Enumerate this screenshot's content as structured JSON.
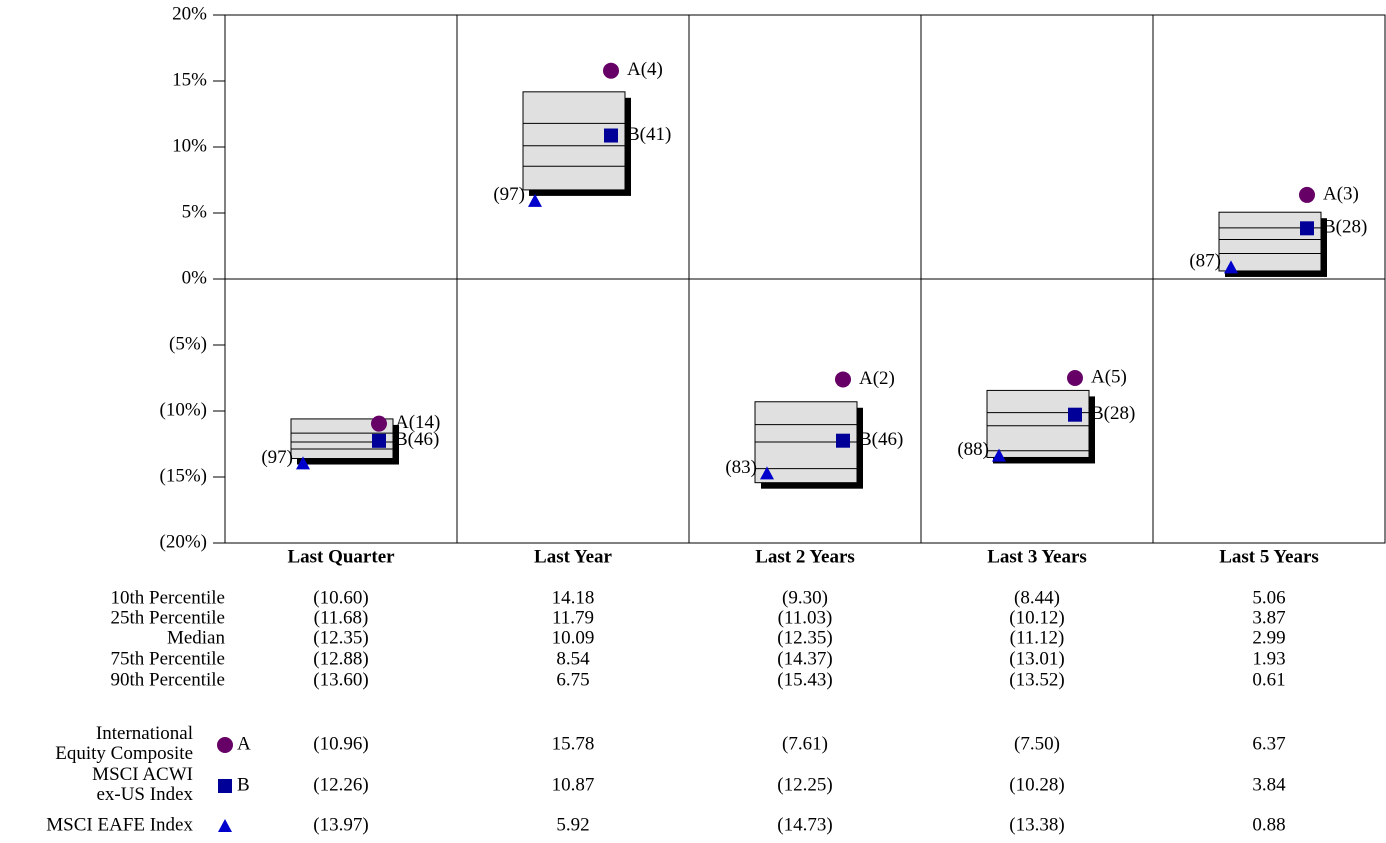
{
  "chart_data": {
    "type": "percentile-box",
    "categories": [
      "Last Quarter",
      "Last Year",
      "Last 2 Years",
      "Last 3 Years",
      "Last 5 Years"
    ],
    "ylim": [
      -20,
      20
    ],
    "yticks": [
      {
        "value": 20,
        "label": "20%"
      },
      {
        "value": 15,
        "label": "15%"
      },
      {
        "value": 10,
        "label": "10%"
      },
      {
        "value": 5,
        "label": "5%"
      },
      {
        "value": 0,
        "label": "0%"
      },
      {
        "value": -5,
        "label": "(5%)"
      },
      {
        "value": -10,
        "label": "(10%)"
      },
      {
        "value": -15,
        "label": "(15%)"
      },
      {
        "value": -20,
        "label": "(20%)"
      }
    ],
    "grid": true,
    "negative_color": "#ff0000",
    "box_color": "#e0e0e0",
    "percentile_rows": [
      {
        "name": "10th Percentile",
        "values": [
          -10.6,
          14.18,
          -9.3,
          -8.44,
          5.06
        ],
        "value_labels": [
          "(10.60)",
          "14.18",
          "(9.30)",
          "(8.44)",
          "5.06"
        ]
      },
      {
        "name": "25th Percentile",
        "values": [
          -11.68,
          11.79,
          -11.03,
          -10.12,
          3.87
        ],
        "value_labels": [
          "(11.68)",
          "11.79",
          "(11.03)",
          "(10.12)",
          "3.87"
        ]
      },
      {
        "name": "Median",
        "values": [
          -12.35,
          10.09,
          -12.35,
          -11.12,
          2.99
        ],
        "value_labels": [
          "(12.35)",
          "10.09",
          "(12.35)",
          "(11.12)",
          "2.99"
        ]
      },
      {
        "name": "75th Percentile",
        "values": [
          -12.88,
          8.54,
          -14.37,
          -13.01,
          1.93
        ],
        "value_labels": [
          "(12.88)",
          "8.54",
          "(14.37)",
          "(13.01)",
          "1.93"
        ]
      },
      {
        "name": "90th Percentile",
        "values": [
          -13.6,
          6.75,
          -15.43,
          -13.52,
          0.61
        ],
        "value_labels": [
          "(13.60)",
          "6.75",
          "(15.43)",
          "(13.52)",
          "0.61"
        ]
      }
    ],
    "series": [
      {
        "name": "International\nEquity Composite",
        "marker_label": "A",
        "shape": "circle",
        "color": "#660066",
        "values": [
          -10.96,
          15.78,
          -7.61,
          -7.5,
          6.37
        ],
        "value_labels": [
          "(10.96)",
          "15.78",
          "(7.61)",
          "(7.50)",
          "6.37"
        ],
        "rank_labels": [
          "A(14)",
          "A(4)",
          "A(2)",
          "A(5)",
          "A(3)"
        ]
      },
      {
        "name": "MSCI ACWI\nex-US Index",
        "marker_label": "B",
        "shape": "square",
        "color": "#000099",
        "values": [
          -12.26,
          10.87,
          -12.25,
          -10.28,
          3.84
        ],
        "value_labels": [
          "(12.26)",
          "10.87",
          "(12.25)",
          "(10.28)",
          "3.84"
        ],
        "rank_labels": [
          "B(46)",
          "B(41)",
          "B(46)",
          "B(28)",
          "B(28)"
        ]
      },
      {
        "name": "MSCI EAFE Index",
        "shape": "triangle",
        "color": "#0000cc",
        "values": [
          -13.97,
          5.92,
          -14.73,
          -13.38,
          0.88
        ],
        "value_labels": [
          "(13.97)",
          "5.92",
          "(14.73)",
          "(13.38)",
          "0.88"
        ],
        "rank_labels": [
          "(97)",
          "(97)",
          "(83)",
          "(88)",
          "(87)"
        ]
      }
    ]
  }
}
